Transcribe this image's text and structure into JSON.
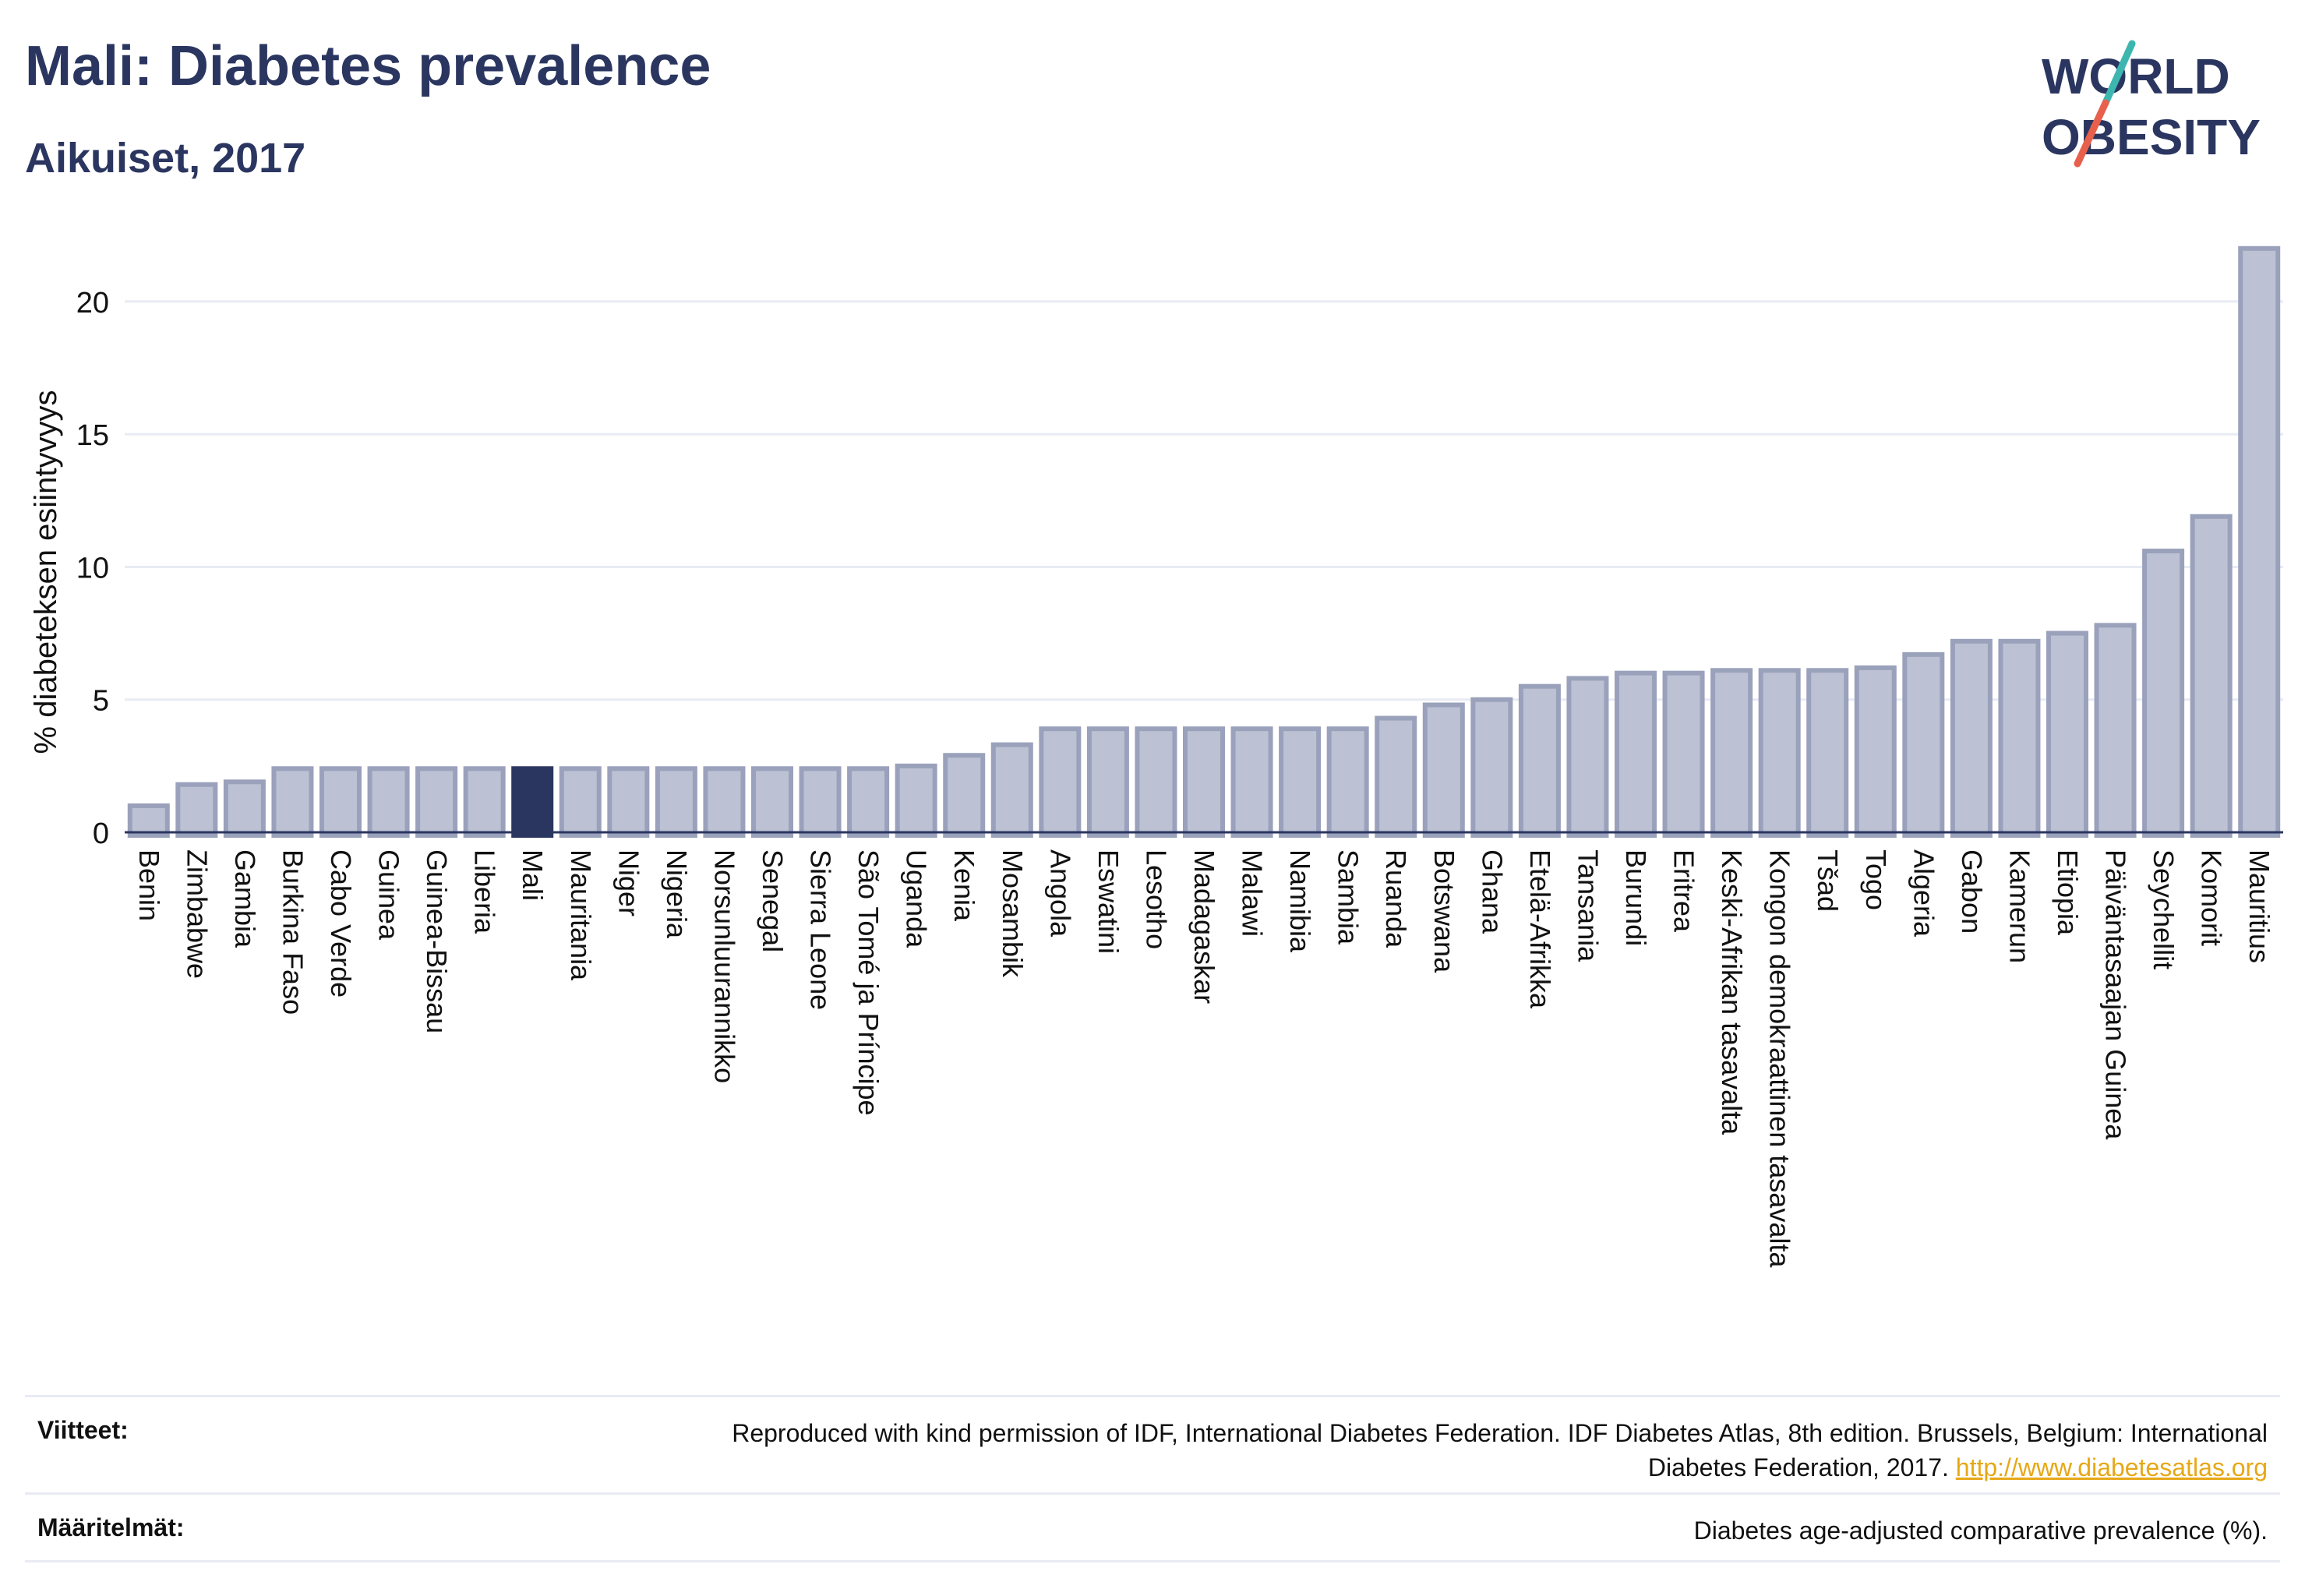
{
  "header": {
    "title": "Mali: Diabetes prevalence",
    "subtitle": "Aikuiset, 2017"
  },
  "logo": {
    "line1": "WORLD",
    "line2": "OBESITY",
    "colors": {
      "text": "#2b3660",
      "slash_top": "#3db6b0",
      "slash_bottom": "#e8604c"
    }
  },
  "chart_data": {
    "type": "bar",
    "ylabel": "% diabeteksen esiintyvyys",
    "ylim": [
      0,
      22.2
    ],
    "yticks": [
      0,
      5,
      10,
      15,
      20
    ],
    "grid": true,
    "highlight": "Mali",
    "colors": {
      "bar": "#bcc1d3",
      "bar_edge": "#9aa1bb",
      "highlight": "#2b3660",
      "grid": "#e8ebf3"
    },
    "categories": [
      "Benin",
      "Zimbabwe",
      "Gambia",
      "Burkina Faso",
      "Cabo Verde",
      "Guinea",
      "Guinea-Bissau",
      "Liberia",
      "Mali",
      "Mauritania",
      "Niger",
      "Nigeria",
      "Norsunluurannikko",
      "Senegal",
      "Sierra Leone",
      "São Tomé ja Príncipe",
      "Uganda",
      "Kenia",
      "Mosambik",
      "Angola",
      "Eswatini",
      "Lesotho",
      "Madagaskar",
      "Malawi",
      "Namibia",
      "Sambia",
      "Ruanda",
      "Botswana",
      "Ghana",
      "Etelä-Afrikka",
      "Tansania",
      "Burundi",
      "Eritrea",
      "Keski-Afrikan tasavalta",
      "Kongon demokraattinen tasavalta",
      "Tšad",
      "Togo",
      "Algeria",
      "Gabon",
      "Kamerun",
      "Etiopia",
      "Päiväntasaajan Guinea",
      "Seychellit",
      "Komorit",
      "Mauritius"
    ],
    "values": [
      1.0,
      1.8,
      1.9,
      2.4,
      2.4,
      2.4,
      2.4,
      2.4,
      2.4,
      2.4,
      2.4,
      2.4,
      2.4,
      2.4,
      2.4,
      2.4,
      2.5,
      2.9,
      3.3,
      3.9,
      3.9,
      3.9,
      3.9,
      3.9,
      3.9,
      3.9,
      4.3,
      4.8,
      5.0,
      5.5,
      5.8,
      6.0,
      6.0,
      6.1,
      6.1,
      6.1,
      6.2,
      6.7,
      7.2,
      7.2,
      7.5,
      7.8,
      10.6,
      11.9,
      22.0
    ]
  },
  "footer": {
    "references_label": "Viitteet:",
    "references_text": "Reproduced with kind permission of IDF, International Diabetes Federation. IDF Diabetes Atlas, 8th edition. Brussels, Belgium: International Diabetes Federation, 2017.",
    "references_link": "http://www.diabetesatlas.org",
    "definitions_label": "Määritelmät:",
    "definitions_text": "Diabetes age-adjusted comparative prevalence (%)."
  }
}
